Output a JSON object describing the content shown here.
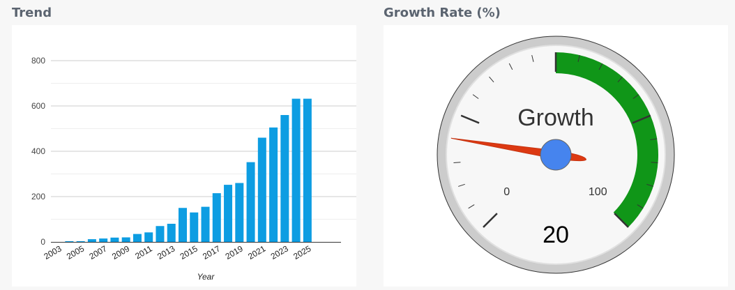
{
  "trend": {
    "title": "Trend"
  },
  "growth": {
    "title": "Growth Rate (%)"
  },
  "chart_data": [
    {
      "type": "bar",
      "title": "Trend",
      "xlabel": "Year",
      "ylabel": "",
      "ylim": [
        0,
        800
      ],
      "yticks": [
        0,
        200,
        400,
        600,
        800
      ],
      "grid": true,
      "categories": [
        "2003",
        "2004",
        "2005",
        "2006",
        "2007",
        "2008",
        "2009",
        "2010",
        "2011",
        "2012",
        "2013",
        "2014",
        "2015",
        "2016",
        "2017",
        "2018",
        "2019",
        "2020",
        "2021",
        "2022",
        "2023",
        "2024",
        "2025"
      ],
      "xtick_labels": [
        "2003",
        "2005",
        "2007",
        "2009",
        "2011",
        "2013",
        "2015",
        "2017",
        "2019",
        "2021",
        "2023",
        "2025"
      ],
      "values": [
        0,
        2,
        3,
        12,
        15,
        19,
        20,
        35,
        42,
        70,
        80,
        150,
        130,
        155,
        215,
        252,
        260,
        352,
        460,
        505,
        560,
        632,
        632
      ],
      "color": "#0d9de2"
    },
    {
      "type": "gauge",
      "label": "Growth",
      "value": 20,
      "value_text": "20",
      "min": 0,
      "max": 100,
      "min_label": "0",
      "max_label": "100",
      "green_from": 50,
      "green_to": 100,
      "colors": {
        "green": "#109618",
        "needle": "#dc3912",
        "hub": "#4684ee",
        "rim": "#cccccc"
      }
    }
  ]
}
